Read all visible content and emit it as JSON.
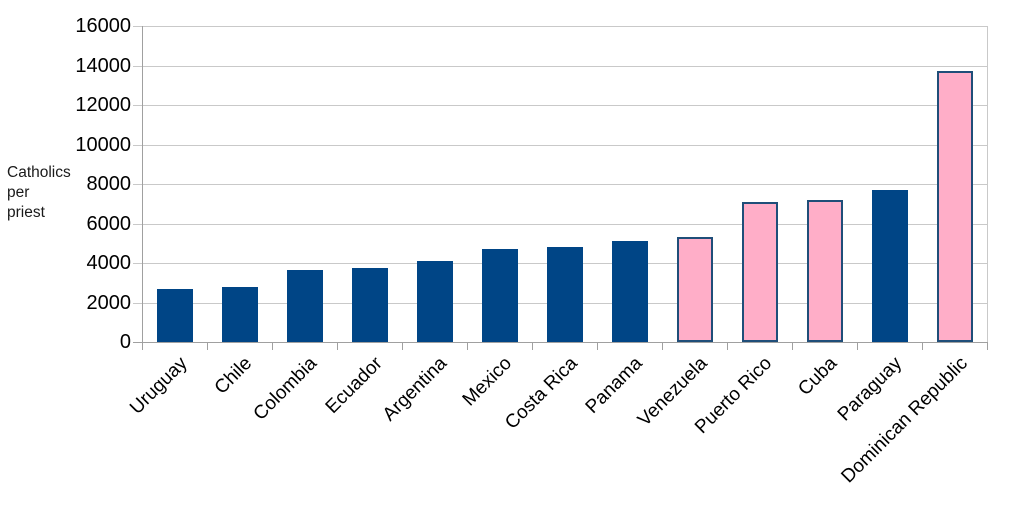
{
  "chart_data": {
    "type": "bar",
    "title": "",
    "ylabel": "Catholics per priest",
    "xlabel": "",
    "categories": [
      "Uruguay",
      "Chile",
      "Colombia",
      "Ecuador",
      "Argentina",
      "Mexico",
      "Costa Rica",
      "Panama",
      "Venezuela",
      "Puerto Rico",
      "Cuba",
      "Paraguay",
      "Dominican Republic"
    ],
    "values": [
      2700,
      2800,
      3650,
      3750,
      4100,
      4700,
      4800,
      5100,
      5300,
      7100,
      7200,
      7700,
      13700
    ],
    "highlighted_categories": [
      "Venezuela",
      "Puerto Rico",
      "Cuba",
      "Dominican Republic"
    ],
    "ylim": [
      0,
      16000
    ],
    "y_ticks": [
      0,
      2000,
      4000,
      6000,
      8000,
      10000,
      12000,
      14000,
      16000
    ],
    "grid": "horizontal",
    "legend": "none",
    "x_tick_rotation_deg": -45,
    "colors": {
      "bar_default": "#004586",
      "bar_highlight": "#ffaec8",
      "bar_highlight_border": "#1f4e79",
      "gridline": "#c9c9c9",
      "axis": "#a0a0a0",
      "text": "#000000"
    }
  }
}
